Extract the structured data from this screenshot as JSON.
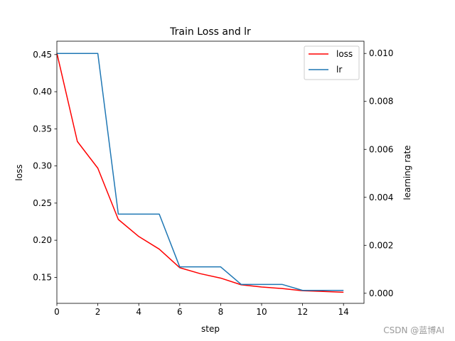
{
  "watermark": "CSDN @蓝博AI",
  "chart_data": {
    "type": "line",
    "title": "Train Loss and lr",
    "xlabel": "step",
    "ylabel": "loss",
    "y2label": "learning rate",
    "xlim": [
      0,
      15
    ],
    "ylim": [
      0.115,
      0.468
    ],
    "y2lim": [
      -0.00042,
      0.01051
    ],
    "xticks": [
      0,
      2,
      4,
      6,
      8,
      10,
      12,
      14
    ],
    "yticks": [
      0.15,
      0.2,
      0.25,
      0.3,
      0.35,
      0.4,
      0.45
    ],
    "ytick_labels": [
      "0.15",
      "0.20",
      "0.25",
      "0.30",
      "0.35",
      "0.40",
      "0.45"
    ],
    "y2ticks": [
      0.0,
      0.002,
      0.004,
      0.006,
      0.008,
      0.01
    ],
    "y2tick_labels": [
      "0.000",
      "0.002",
      "0.004",
      "0.006",
      "0.008",
      "0.010"
    ],
    "grid": false,
    "legend_position": "top-right",
    "x": [
      0,
      1,
      2,
      3,
      4,
      5,
      6,
      7,
      8,
      9,
      10,
      11,
      12,
      13,
      14
    ],
    "series": [
      {
        "name": "loss",
        "axis": "left",
        "color": "#ff0000",
        "values": [
          0.452,
          0.333,
          0.297,
          0.228,
          0.205,
          0.188,
          0.163,
          0.155,
          0.149,
          0.14,
          0.137,
          0.135,
          0.132,
          0.131,
          0.13
        ]
      },
      {
        "name": "lr",
        "axis": "right",
        "color": "#1f77b4",
        "values": [
          0.01,
          0.01,
          0.01,
          0.0033,
          0.0033,
          0.0033,
          0.0011,
          0.0011,
          0.0011,
          0.00037,
          0.00037,
          0.00037,
          0.00012,
          0.00012,
          0.00012
        ]
      }
    ]
  }
}
